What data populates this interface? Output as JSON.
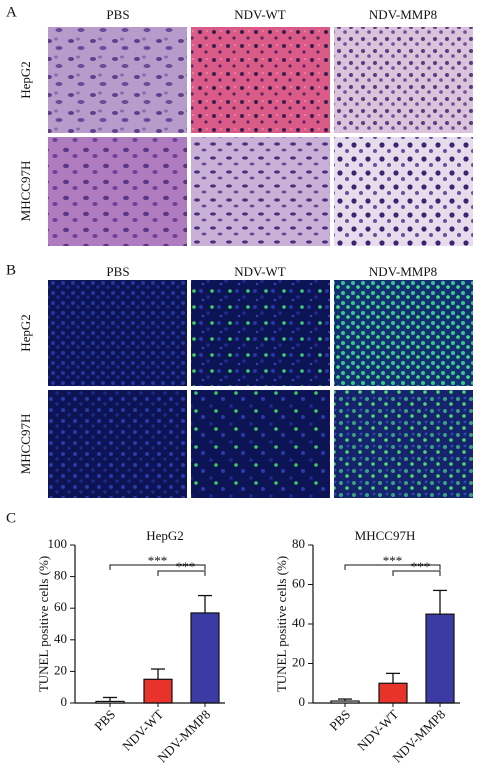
{
  "panel_a": {
    "label": "A",
    "columns": [
      "PBS",
      "NDV-WT",
      "NDV-MMP8"
    ],
    "rows": [
      "HepG2",
      "MHCC97H"
    ]
  },
  "panel_b": {
    "label": "B",
    "columns": [
      "PBS",
      "NDV-WT",
      "NDV-MMP8"
    ],
    "rows": [
      "HepG2",
      "MHCC97H"
    ]
  },
  "panel_c": {
    "label": "C"
  },
  "chart_data": [
    {
      "type": "bar",
      "title": "HepG2",
      "y_label": "TUNEL positive cells (%)",
      "categories": [
        "PBS",
        "NDV-WT",
        "NDV-MMP8"
      ],
      "values": [
        1,
        15,
        57
      ],
      "errors": [
        2.5,
        6.5,
        11
      ],
      "colors": [
        "#ffffff",
        "#e8332b",
        "#3b3ba3"
      ],
      "ylim": [
        0,
        100
      ],
      "yticks": [
        0,
        20,
        40,
        60,
        80,
        100
      ],
      "annotations": [
        "***",
        "***"
      ]
    },
    {
      "type": "bar",
      "title": "MHCC97H",
      "y_label": "TUNEL positive cells (%)",
      "categories": [
        "PBS",
        "NDV-WT",
        "NDV-MMP8"
      ],
      "values": [
        1,
        10,
        45
      ],
      "errors": [
        1,
        5,
        12
      ],
      "colors": [
        "#ffffff",
        "#e8332b",
        "#3b3ba3"
      ],
      "ylim": [
        0,
        80
      ],
      "yticks": [
        0,
        20,
        40,
        60,
        80
      ],
      "annotations": [
        "***",
        "***"
      ]
    }
  ]
}
